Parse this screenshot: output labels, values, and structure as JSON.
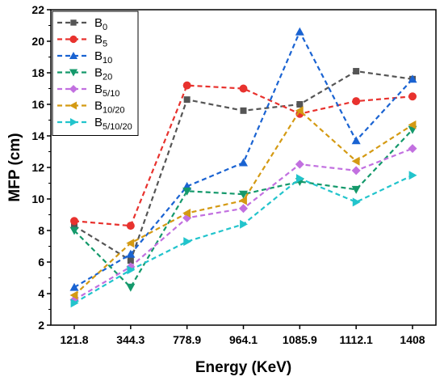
{
  "chart_data": {
    "type": "line",
    "xlabel": "Energy (KeV)",
    "ylabel": "MFP (cm)",
    "categories": [
      "121.8",
      "344.3",
      "778.9",
      "964.1",
      "1085.9",
      "1112.1",
      "1408"
    ],
    "ylim": [
      2,
      22
    ],
    "yticks": [
      2,
      4,
      6,
      8,
      10,
      12,
      14,
      16,
      18,
      20,
      22
    ],
    "grid": false,
    "legend": "top-left",
    "series": [
      {
        "name": "B0",
        "base": "B",
        "sub": "0",
        "color": "#555555",
        "marker": "square",
        "values": [
          8.3,
          6.1,
          16.3,
          15.6,
          16.0,
          18.1,
          17.6
        ]
      },
      {
        "name": "B5",
        "base": "B",
        "sub": "5",
        "color": "#e8322e",
        "marker": "circle",
        "values": [
          8.6,
          8.3,
          17.2,
          17.0,
          15.4,
          16.2,
          16.5
        ]
      },
      {
        "name": "B10",
        "base": "B",
        "sub": "10",
        "color": "#1a63d2",
        "marker": "triangle-up",
        "values": [
          4.4,
          6.5,
          10.8,
          12.3,
          20.6,
          13.7,
          17.6
        ]
      },
      {
        "name": "B20",
        "base": "B",
        "sub": "20",
        "color": "#14996b",
        "marker": "triangle-down",
        "values": [
          8.0,
          4.4,
          10.5,
          10.3,
          11.1,
          10.6,
          14.4
        ]
      },
      {
        "name": "B5/10",
        "base": "B",
        "sub": "5/10",
        "color": "#c270e0",
        "marker": "diamond",
        "values": [
          3.6,
          5.7,
          8.8,
          9.4,
          12.2,
          11.8,
          13.2
        ]
      },
      {
        "name": "B10/20",
        "base": "B",
        "sub": "10/20",
        "color": "#d49a13",
        "marker": "triangle-left",
        "values": [
          3.9,
          7.2,
          9.1,
          9.9,
          15.6,
          12.4,
          14.7
        ]
      },
      {
        "name": "B5/10/20",
        "base": "B",
        "sub": "5/10/20",
        "color": "#22c4cc",
        "marker": "triangle-right",
        "values": [
          3.4,
          5.5,
          7.3,
          8.4,
          11.3,
          9.8,
          11.5
        ]
      }
    ]
  }
}
